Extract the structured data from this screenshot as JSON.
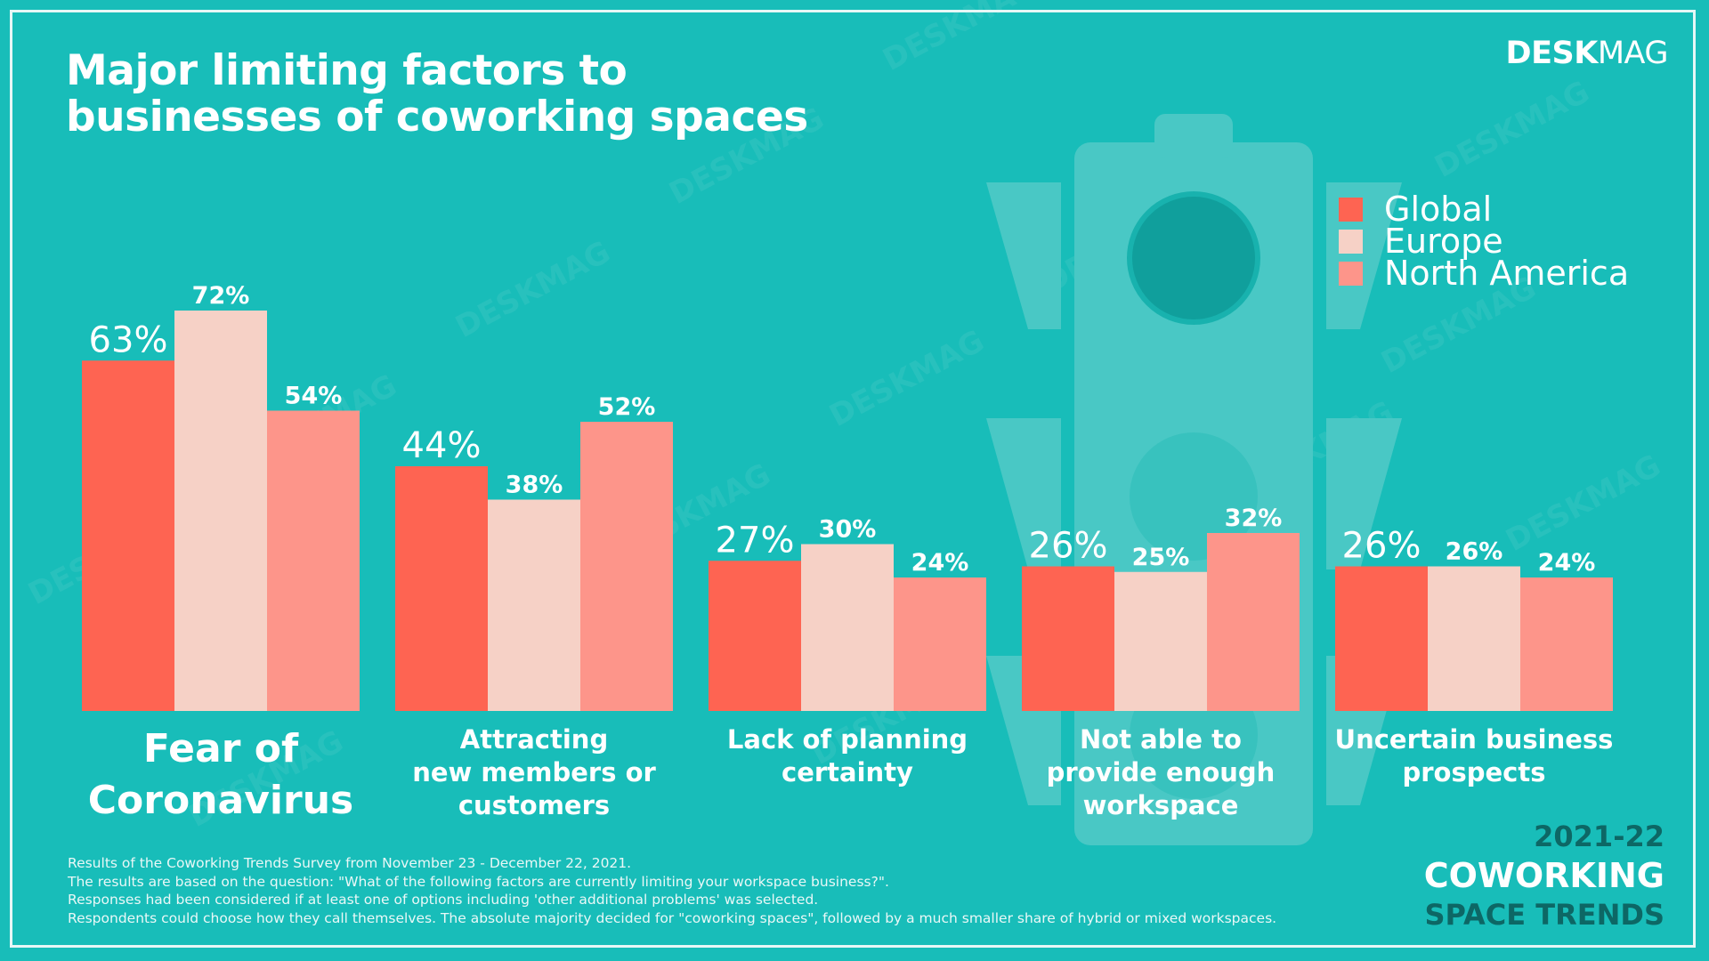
{
  "header": {
    "title_line1": "Major limiting factors to",
    "title_line2": "businesses of coworking spaces",
    "brand_bold": "DESK",
    "brand_light": "MAG"
  },
  "watermark": "DESKMAG",
  "colors": {
    "background": "#18bdb9",
    "global": "#fe6452",
    "europe": "#f6d1c6",
    "north_america": "#fd958a",
    "traffic_light": "#49c8c5"
  },
  "chart_data": {
    "type": "bar",
    "title": "Major limiting factors to businesses of coworking spaces",
    "categories": [
      [
        "Fear of",
        "Coronavirus"
      ],
      [
        "Attracting",
        "new members or",
        "customers"
      ],
      [
        "Lack of planning",
        "certainty"
      ],
      [
        "Not able to",
        "provide enough",
        "workspace"
      ],
      [
        "Uncertain business",
        "prospects"
      ]
    ],
    "series": [
      {
        "name": "Global",
        "values": [
          63,
          44,
          27,
          26,
          26
        ],
        "labels": [
          "63%",
          "44%",
          "27%",
          "26%",
          "26%"
        ]
      },
      {
        "name": "Europe",
        "values": [
          72,
          38,
          30,
          25,
          26
        ],
        "labels": [
          "72%",
          "38%",
          "30%",
          "25%",
          "26%"
        ]
      },
      {
        "name": "North America",
        "values": [
          54,
          52,
          24,
          32,
          24
        ],
        "labels": [
          "54%",
          "52%",
          "24%",
          "32%",
          "24%"
        ]
      }
    ],
    "unit": "%",
    "legend_position": "top-right",
    "grid": false
  },
  "footnote": [
    "Results of the Coworking Trends Survey from November 23 - December 22, 2021.",
    "The results are based on the question: \"What of the following factors are currently limiting your workspace business?\".",
    "Responses had been considered if at least one of options including 'other additional problems' was selected.",
    "Respondents could choose how they call themselves. The absolute majority decided for \"coworking spaces\", followed by a much smaller share of hybrid or mixed workspaces."
  ],
  "trends": {
    "year": "2021-22",
    "line2": "COWORKING",
    "line3": "SPACE TRENDS"
  }
}
